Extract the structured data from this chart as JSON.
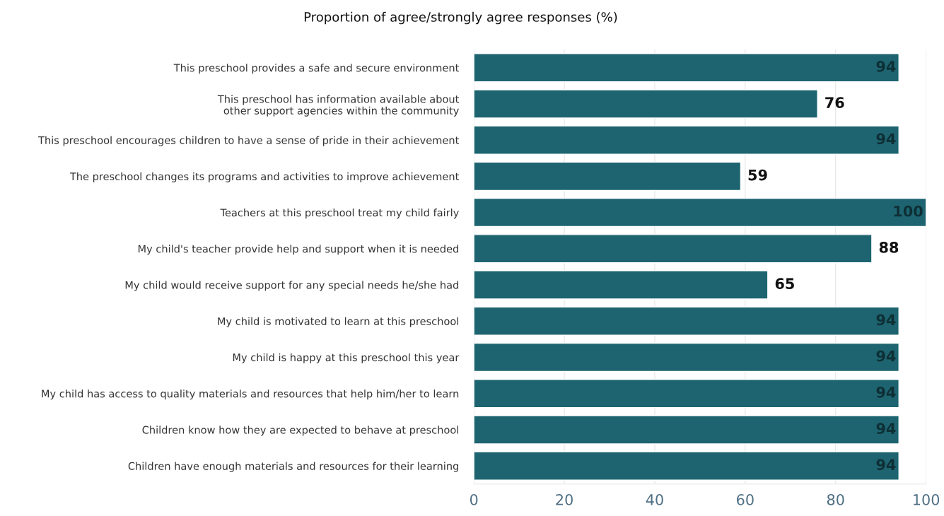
{
  "chart_data": {
    "type": "bar",
    "orientation": "horizontal",
    "title": "Proportion of agree/strongly agree responses (%)",
    "categories": [
      "This preschool provides a safe and secure environment",
      "This preschool has information available about\nother support agencies within the community",
      "This preschool encourages children to have a sense of pride in their achievement",
      "The preschool changes its programs and activities to improve achievement",
      "Teachers at this preschool treat my child fairly",
      "My child's teacher provide help and support when it is needed",
      "My child would receive support for any special needs he/she had",
      "My child is motivated to learn at this preschool",
      "My child is happy at this preschool this year",
      "My child has access to quality materials and resources that help him/her to learn",
      "Children know how they are expected to behave at preschool",
      "Children have enough materials and resources for their learning"
    ],
    "values": [
      94,
      76,
      94,
      59,
      100,
      88,
      65,
      94,
      94,
      94,
      94,
      94
    ],
    "color": "#1d6470",
    "xlim": [
      0,
      100
    ],
    "xticks": [
      0,
      20,
      40,
      60,
      80,
      100
    ],
    "grid": "x",
    "data_labels": true,
    "legend": false
  }
}
